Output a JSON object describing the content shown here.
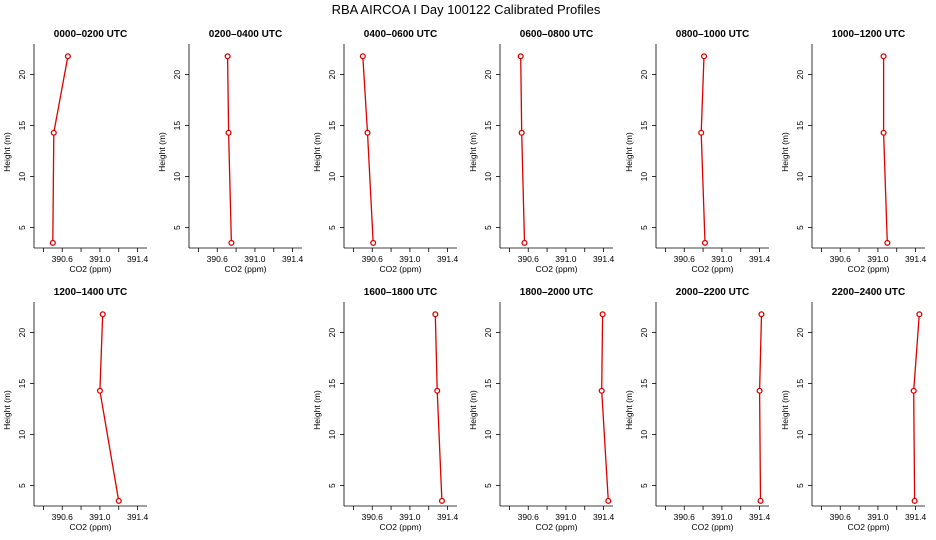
{
  "figure_title": "RBA AIRCOA I  Day 100122  Calibrated Profiles",
  "colors": {
    "line": "#dd0000",
    "axis": "#000000"
  },
  "chart_data": [
    {
      "type": "line",
      "title": "0000–0200 UTC",
      "xlabel": "CO2 (ppm)",
      "ylabel": "Height (m)",
      "xlim": [
        390.3,
        391.5
      ],
      "ylim": [
        3,
        23
      ],
      "xticks": [
        "390.6",
        "391.0",
        "391.4"
      ],
      "yticks": [
        "5",
        "10",
        "15",
        "20"
      ],
      "x": [
        390.5,
        390.51,
        390.66
      ],
      "y": [
        3.5,
        14.3,
        21.8
      ]
    },
    {
      "type": "line",
      "title": "0200–0400 UTC",
      "xlabel": "CO2 (ppm)",
      "ylabel": "Height (m)",
      "xlim": [
        390.3,
        391.5
      ],
      "ylim": [
        3,
        23
      ],
      "xticks": [
        "390.6",
        "391.0",
        "391.4"
      ],
      "yticks": [
        "5",
        "10",
        "15",
        "20"
      ],
      "x": [
        390.75,
        390.72,
        390.71
      ],
      "y": [
        3.5,
        14.3,
        21.8
      ]
    },
    {
      "type": "line",
      "title": "0400–0600 UTC",
      "xlabel": "CO2 (ppm)",
      "ylabel": "Height (m)",
      "xlim": [
        390.3,
        391.5
      ],
      "ylim": [
        3,
        23
      ],
      "xticks": [
        "390.6",
        "391.0",
        "391.4"
      ],
      "yticks": [
        "5",
        "10",
        "15",
        "20"
      ],
      "x": [
        390.61,
        390.55,
        390.5
      ],
      "y": [
        3.5,
        14.3,
        21.8
      ]
    },
    {
      "type": "line",
      "title": "0600–0800 UTC",
      "xlabel": "CO2 (ppm)",
      "ylabel": "Height (m)",
      "xlim": [
        390.3,
        391.5
      ],
      "ylim": [
        3,
        23
      ],
      "xticks": [
        "390.6",
        "391.0",
        "391.4"
      ],
      "yticks": [
        "5",
        "10",
        "15",
        "20"
      ],
      "x": [
        390.56,
        390.53,
        390.52
      ],
      "y": [
        3.5,
        14.3,
        21.8
      ]
    },
    {
      "type": "line",
      "title": "0800–1000 UTC",
      "xlabel": "CO2 (ppm)",
      "ylabel": "Height (m)",
      "xlim": [
        390.3,
        391.5
      ],
      "ylim": [
        3,
        23
      ],
      "xticks": [
        "390.6",
        "391.0",
        "391.4"
      ],
      "yticks": [
        "5",
        "10",
        "15",
        "20"
      ],
      "x": [
        390.82,
        390.78,
        390.81
      ],
      "y": [
        3.5,
        14.3,
        21.8
      ]
    },
    {
      "type": "line",
      "title": "1000–1200 UTC",
      "xlabel": "CO2 (ppm)",
      "ylabel": "Height (m)",
      "xlim": [
        390.3,
        391.5
      ],
      "ylim": [
        3,
        23
      ],
      "xticks": [
        "390.6",
        "391.0",
        "391.4"
      ],
      "yticks": [
        "5",
        "10",
        "15",
        "20"
      ],
      "x": [
        391.1,
        391.06,
        391.06
      ],
      "y": [
        3.5,
        14.3,
        21.8
      ]
    },
    {
      "type": "line",
      "title": "1200–1400 UTC",
      "xlabel": "CO2 (ppm)",
      "ylabel": "Height (m)",
      "xlim": [
        390.3,
        391.5
      ],
      "ylim": [
        3,
        23
      ],
      "xticks": [
        "390.6",
        "391.0",
        "391.4"
      ],
      "yticks": [
        "5",
        "10",
        "15",
        "20"
      ],
      "x": [
        391.2,
        391.0,
        391.03
      ],
      "y": [
        3.5,
        14.3,
        21.8
      ]
    },
    null,
    {
      "type": "line",
      "title": "1600–1800 UTC",
      "xlabel": "CO2 (ppm)",
      "ylabel": "Height (m)",
      "xlim": [
        390.3,
        391.5
      ],
      "ylim": [
        3,
        23
      ],
      "xticks": [
        "390.6",
        "391.0",
        "391.4"
      ],
      "yticks": [
        "5",
        "10",
        "15",
        "20"
      ],
      "x": [
        391.34,
        391.29,
        391.27
      ],
      "y": [
        3.5,
        14.3,
        21.8
      ]
    },
    {
      "type": "line",
      "title": "1800–2000 UTC",
      "xlabel": "CO2 (ppm)",
      "ylabel": "Height (m)",
      "xlim": [
        390.3,
        391.5
      ],
      "ylim": [
        3,
        23
      ],
      "xticks": [
        "390.6",
        "391.0",
        "391.4"
      ],
      "yticks": [
        "5",
        "10",
        "15",
        "20"
      ],
      "x": [
        391.45,
        391.38,
        391.39
      ],
      "y": [
        3.5,
        14.3,
        21.8
      ]
    },
    {
      "type": "line",
      "title": "2000–2200 UTC",
      "xlabel": "CO2 (ppm)",
      "ylabel": "Height (m)",
      "xlim": [
        390.3,
        391.5
      ],
      "ylim": [
        3,
        23
      ],
      "xticks": [
        "390.6",
        "391.0",
        "391.4"
      ],
      "yticks": [
        "5",
        "10",
        "15",
        "20"
      ],
      "x": [
        391.41,
        391.4,
        391.42
      ],
      "y": [
        3.5,
        14.3,
        21.8
      ]
    },
    {
      "type": "line",
      "title": "2200–2400 UTC",
      "xlabel": "CO2 (ppm)",
      "ylabel": "Height (m)",
      "xlim": [
        390.3,
        391.5
      ],
      "ylim": [
        3,
        23
      ],
      "xticks": [
        "390.6",
        "391.0",
        "391.4"
      ],
      "yticks": [
        "5",
        "10",
        "15",
        "20"
      ],
      "x": [
        391.39,
        391.38,
        391.44
      ],
      "y": [
        3.5,
        14.3,
        21.8
      ]
    }
  ]
}
